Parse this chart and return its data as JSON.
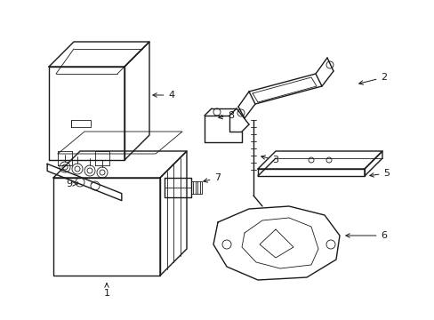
{
  "background_color": "#ffffff",
  "line_color": "#1a1a1a",
  "lw": 1.0,
  "lw_thin": 0.6,
  "label_fontsize": 8
}
